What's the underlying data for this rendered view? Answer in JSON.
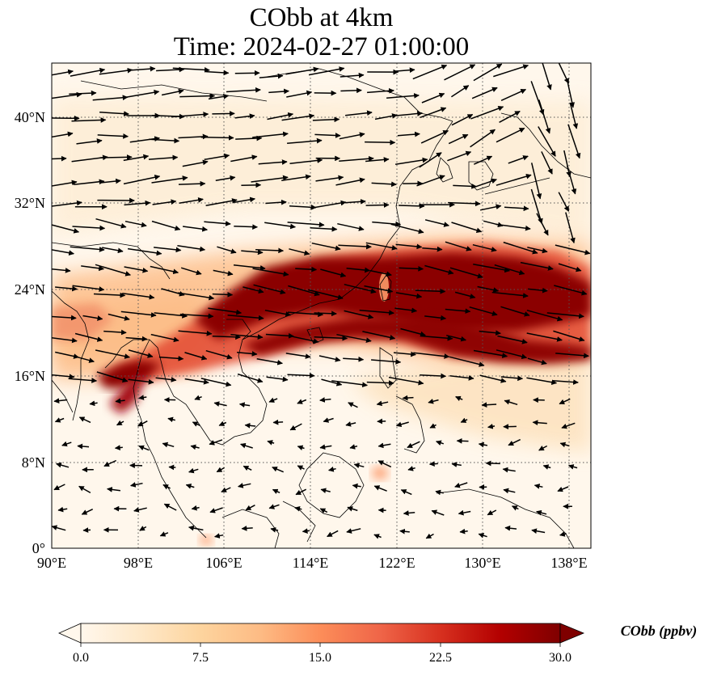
{
  "title": {
    "line1": "CObb at 4km",
    "line2": "Time: 2024-02-27 01:00:00"
  },
  "map": {
    "projection": "PlateCarree",
    "lon_range": [
      90,
      139.5
    ],
    "lat_range": [
      0,
      45
    ],
    "gridlines": "dotted",
    "coastlines": true,
    "lat_ticks": [
      "40°N",
      "32°N",
      "24°N",
      "16°N",
      "8°N",
      "0°"
    ],
    "lon_ticks": [
      "90°E",
      "98°E",
      "106°E",
      "114°E",
      "122°E",
      "130°E",
      "138°E"
    ],
    "field": "CObb",
    "field_pattern": "dense plume band along ~17-27°N from Indochina (~96°E) to east of Japan (~139°E), max near Taiwan and over Pacific; weak background elsewhere",
    "wind_vectors": "westerly to west-northwesterly flow north of ~16°N, weak easterlies to the south"
  },
  "colorbar": {
    "label": "CObb (ppbv)",
    "cmap": "OrRd",
    "ticks": [
      "0.0",
      "7.5",
      "15.0",
      "22.5",
      "30.0"
    ],
    "min": 0,
    "max": 30,
    "extend": "both",
    "colors": [
      "#fff7ec",
      "#fee8c8",
      "#fdd49e",
      "#fdbb84",
      "#fc8d59",
      "#ef6548",
      "#d7301f",
      "#b30000",
      "#7f0000"
    ]
  }
}
